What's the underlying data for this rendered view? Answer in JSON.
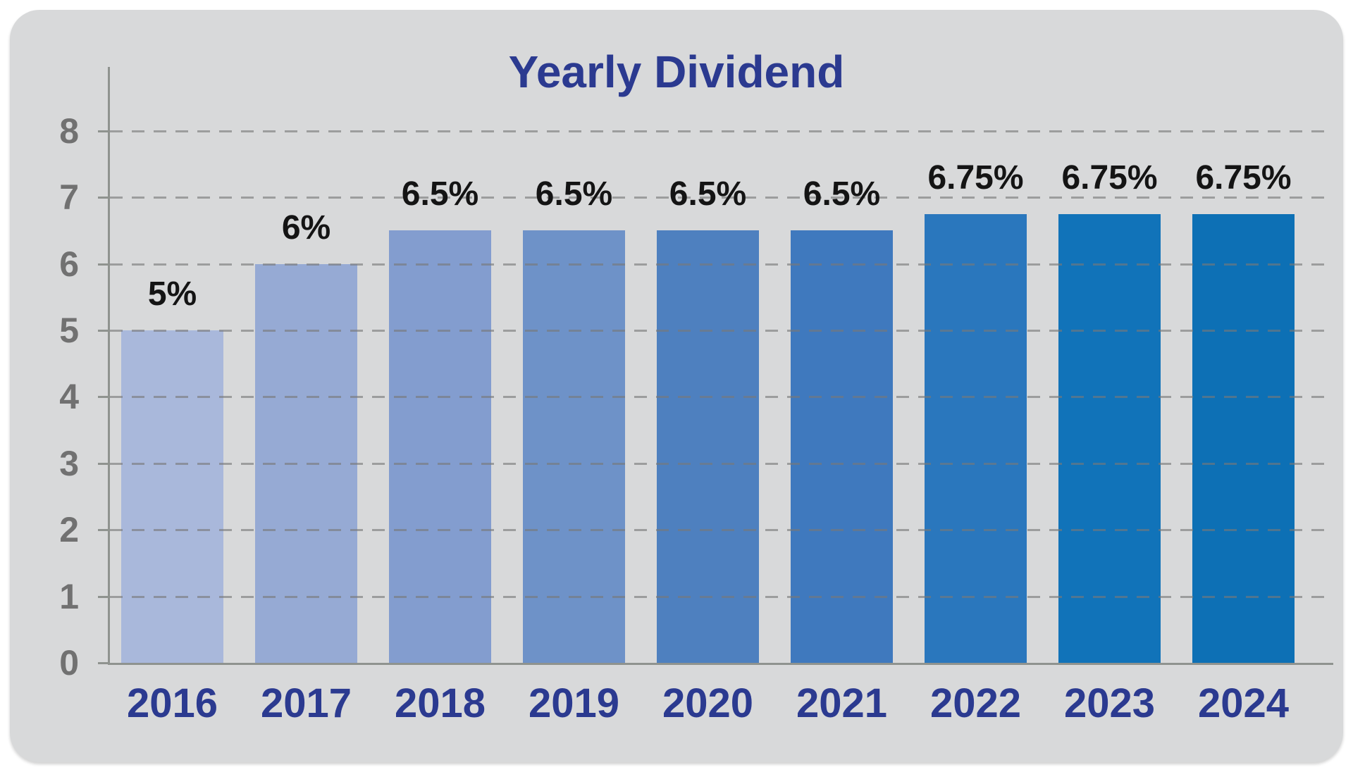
{
  "page": {
    "background_color": "#ffffff",
    "card_color": "#d8d9da"
  },
  "chart_data": {
    "type": "bar",
    "title": "Yearly Dividend",
    "categories": [
      "2016",
      "2017",
      "2018",
      "2019",
      "2020",
      "2021",
      "2022",
      "2023",
      "2024"
    ],
    "values": [
      5,
      6,
      6.5,
      6.5,
      6.5,
      6.5,
      6.75,
      6.75,
      6.75
    ],
    "value_labels": [
      "5%",
      "6%",
      "6.5%",
      "6.5%",
      "6.5%",
      "6.5%",
      "6.75%",
      "6.75%",
      "6.75%"
    ],
    "bar_colors": [
      "#a9b8db",
      "#96aad4",
      "#839dcf",
      "#6e92c8",
      "#4e80bf",
      "#3f79be",
      "#2a77bd",
      "#1173b9",
      "#0d70b5"
    ],
    "xlabel": "",
    "ylabel": "",
    "ylim": [
      0,
      8
    ],
    "yticks": [
      0,
      1,
      2,
      3,
      4,
      5,
      6,
      7,
      8
    ],
    "grid": "horizontal-dashed",
    "legend": "none",
    "colors": {
      "title": "#2b3a90",
      "category_labels": "#2b3a90",
      "value_labels": "#141414",
      "y_tick_labels": "#717171",
      "axis_line": "#8f938f",
      "gridline": "#8c8c8c"
    }
  }
}
